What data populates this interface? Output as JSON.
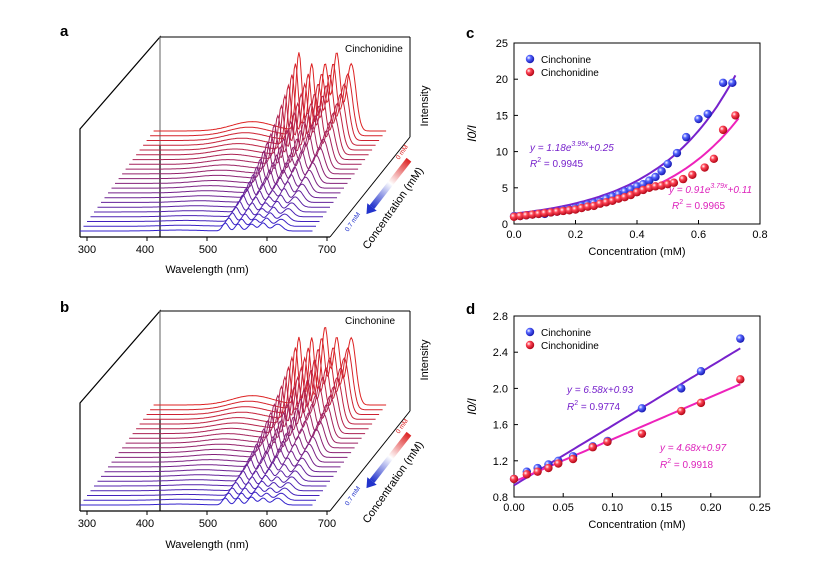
{
  "panels": {
    "a": {
      "letter": "a",
      "compound": "Cinchonidine",
      "xlabel": "Wavelength (nm)",
      "xticks": [
        "300",
        "400",
        "500",
        "600",
        "700"
      ],
      "zlabel": "Intensity",
      "depth_label": "Concentration (mM)",
      "depth_start": "0 mM",
      "depth_end": "0.7 mM"
    },
    "b": {
      "letter": "b",
      "compound": "Cinchonine",
      "xlabel": "Wavelength (nm)",
      "xticks": [
        "300",
        "400",
        "500",
        "600",
        "700"
      ],
      "zlabel": "Intensity",
      "depth_label": "Concentration (mM)",
      "depth_start": "0 mM",
      "depth_end": "0.7 mM"
    },
    "c": {
      "letter": "c",
      "eq1_prefix": "y = 1.18e",
      "eq1_exp": "3.95x",
      "eq1_suffix": "+0.25",
      "r2_1_label": "R",
      "r2_1_value": " = 0.9945",
      "eq2_prefix": "y = 0.91e",
      "eq2_exp": "3.79x",
      "eq2_suffix": "+0.11",
      "r2_2_label": "R",
      "r2_2_value": " = 0.9965"
    },
    "d": {
      "letter": "d",
      "eq1": "y = 6.58x+0.93",
      "r2_1_label": "R",
      "r2_1_value": " = 0.9774",
      "eq2": "y = 4.68x+0.97",
      "r2_2_label": "R",
      "r2_2_value": " = 0.9918"
    }
  },
  "colors": {
    "cinchonine": "#3333dd",
    "cinchonidine": "#ee2233",
    "fit_cinchonine": "#7722cc",
    "fit_cinchonidine": "#ee22bb",
    "eq_cinchonine": "#7722cc",
    "eq_cinchonidine": "#dd22bb"
  },
  "chart_data": [
    {
      "type": "scatter",
      "panel": "c",
      "xlabel": "Concentration (mM)",
      "ylabel": "I0/I",
      "xlim": [
        0.0,
        0.8
      ],
      "ylim": [
        0,
        25
      ],
      "xticks": [
        0.0,
        0.2,
        0.4,
        0.6,
        0.8
      ],
      "xtick_labels": [
        "0.0",
        "0.2",
        "0.4",
        "0.6",
        "0.8"
      ],
      "yticks": [
        0,
        5,
        10,
        15,
        20,
        25
      ],
      "ytick_labels": [
        "0",
        "5",
        "10",
        "15",
        "20",
        "25"
      ],
      "legend": "top-left",
      "series": [
        {
          "name": "Cinchonine",
          "x": [
            0.0,
            0.02,
            0.04,
            0.06,
            0.08,
            0.1,
            0.12,
            0.14,
            0.16,
            0.18,
            0.2,
            0.22,
            0.24,
            0.26,
            0.28,
            0.3,
            0.32,
            0.34,
            0.36,
            0.38,
            0.4,
            0.42,
            0.44,
            0.46,
            0.48,
            0.5,
            0.53,
            0.56,
            0.6,
            0.63,
            0.68,
            0.71
          ],
          "y": [
            1.1,
            1.1,
            1.2,
            1.3,
            1.4,
            1.4,
            1.6,
            1.7,
            1.9,
            2.0,
            2.2,
            2.5,
            2.7,
            2.9,
            3.1,
            3.5,
            3.8,
            4.1,
            4.5,
            4.8,
            5.2,
            5.5,
            6.0,
            6.5,
            7.3,
            8.3,
            9.8,
            12.0,
            14.5,
            15.2,
            19.5,
            19.5
          ]
        },
        {
          "name": "Cinchonidine",
          "x": [
            0.0,
            0.02,
            0.04,
            0.06,
            0.08,
            0.1,
            0.12,
            0.14,
            0.16,
            0.18,
            0.2,
            0.22,
            0.24,
            0.26,
            0.28,
            0.3,
            0.32,
            0.34,
            0.36,
            0.38,
            0.4,
            0.42,
            0.44,
            0.46,
            0.48,
            0.5,
            0.52,
            0.55,
            0.58,
            0.62,
            0.65,
            0.68,
            0.72
          ],
          "y": [
            1.0,
            1.1,
            1.2,
            1.3,
            1.4,
            1.5,
            1.6,
            1.7,
            1.8,
            1.9,
            2.0,
            2.2,
            2.4,
            2.5,
            2.8,
            3.0,
            3.2,
            3.5,
            3.7,
            4.0,
            4.4,
            4.7,
            5.0,
            5.2,
            5.3,
            5.5,
            5.7,
            6.2,
            6.8,
            7.8,
            9.0,
            13.0,
            15.0
          ]
        }
      ],
      "fits": [
        {
          "name": "Cinchonine",
          "model": "exp",
          "a": 1.18,
          "b": 3.95,
          "c": 0.25,
          "x_range": [
            0.0,
            0.72
          ]
        },
        {
          "name": "Cinchonidine",
          "model": "exp",
          "a": 0.91,
          "b": 3.79,
          "c": 0.11,
          "x_range": [
            0.0,
            0.73
          ]
        }
      ]
    },
    {
      "type": "scatter",
      "panel": "d",
      "xlabel": "Concentration (mM)",
      "ylabel": "I0/I",
      "xlim": [
        0.0,
        0.25
      ],
      "ylim": [
        0.8,
        2.8
      ],
      "xticks": [
        0.0,
        0.05,
        0.1,
        0.15,
        0.2,
        0.25
      ],
      "xtick_labels": [
        "0.00",
        "0.05",
        "0.10",
        "0.15",
        "0.20",
        "0.25"
      ],
      "yticks": [
        0.8,
        1.2,
        1.6,
        2.0,
        2.4,
        2.8
      ],
      "ytick_labels": [
        "0.8",
        "1.2",
        "1.6",
        "2.0",
        "2.4",
        "2.8"
      ],
      "legend": "top-left",
      "series": [
        {
          "name": "Cinchonine",
          "x": [
            0.0,
            0.013,
            0.024,
            0.035,
            0.045,
            0.06,
            0.08,
            0.095,
            0.13,
            0.17,
            0.19,
            0.23
          ],
          "y": [
            1.0,
            1.08,
            1.12,
            1.16,
            1.2,
            1.25,
            1.36,
            1.42,
            1.78,
            2.0,
            2.19,
            2.55
          ]
        },
        {
          "name": "Cinchonidine",
          "x": [
            0.0,
            0.013,
            0.024,
            0.035,
            0.045,
            0.06,
            0.08,
            0.095,
            0.13,
            0.17,
            0.19,
            0.23
          ],
          "y": [
            1.0,
            1.05,
            1.08,
            1.12,
            1.17,
            1.22,
            1.35,
            1.41,
            1.5,
            1.75,
            1.84,
            2.1
          ]
        }
      ],
      "fits": [
        {
          "name": "Cinchonine",
          "model": "linear",
          "m": 6.58,
          "b": 0.93,
          "x_range": [
            0.0,
            0.23
          ]
        },
        {
          "name": "Cinchonidine",
          "model": "linear",
          "m": 4.68,
          "b": 0.97,
          "x_range": [
            0.0,
            0.23
          ]
        }
      ]
    }
  ]
}
